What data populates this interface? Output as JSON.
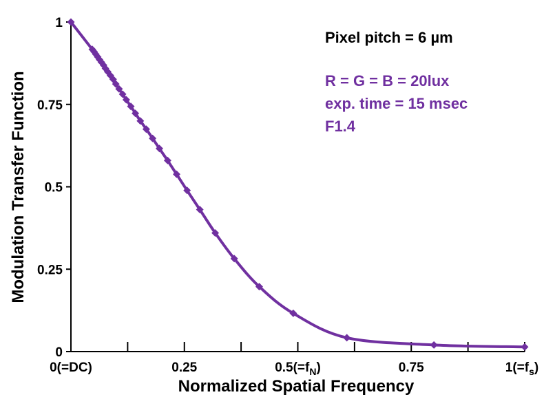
{
  "chart_data": {
    "type": "line",
    "xlabel": "Normalized Spatial Frequency",
    "ylabel": "Modulation Transfer Function",
    "xlim": [
      0,
      1
    ],
    "ylim": [
      0,
      1
    ],
    "x_ticks": [
      {
        "value": 0,
        "label": "0(=DC)"
      },
      {
        "value": 0.25,
        "label": "0.25"
      },
      {
        "value": 0.5,
        "label": "0.5(=f",
        "sub": "N",
        "suffix": ")"
      },
      {
        "value": 0.75,
        "label": "0.75"
      },
      {
        "value": 1,
        "label": "1(=f",
        "sub": "s",
        "suffix": ")"
      }
    ],
    "x_minor_ticks": [
      0.125,
      0.375,
      0.625,
      0.875
    ],
    "y_ticks": [
      {
        "value": 0,
        "label": "0"
      },
      {
        "value": 0.25,
        "label": "0.25"
      },
      {
        "value": 0.5,
        "label": "0.5"
      },
      {
        "value": 0.75,
        "label": "0.75"
      },
      {
        "value": 1,
        "label": "1"
      }
    ],
    "grid": false,
    "legend": "none",
    "series_color": "#7030a0",
    "annotations": {
      "pixel_pitch": "Pixel pitch = 6 µm",
      "line1": "R = G = B = 20lux",
      "line2": "exp. time = 15 msec",
      "line3": "F1.4"
    },
    "series": [
      {
        "points": [
          [
            0.0,
            1.0
          ],
          [
            0.047,
            0.917
          ],
          [
            0.051,
            0.91
          ],
          [
            0.055,
            0.902
          ],
          [
            0.059,
            0.894
          ],
          [
            0.063,
            0.886
          ],
          [
            0.067,
            0.878
          ],
          [
            0.072,
            0.869
          ],
          [
            0.076,
            0.859
          ],
          [
            0.081,
            0.849
          ],
          [
            0.087,
            0.838
          ],
          [
            0.093,
            0.826
          ],
          [
            0.099,
            0.812
          ],
          [
            0.106,
            0.797
          ],
          [
            0.114,
            0.781
          ],
          [
            0.122,
            0.764
          ],
          [
            0.132,
            0.744
          ],
          [
            0.142,
            0.723
          ],
          [
            0.153,
            0.7
          ],
          [
            0.166,
            0.675
          ],
          [
            0.18,
            0.647
          ],
          [
            0.195,
            0.616
          ],
          [
            0.213,
            0.58
          ],
          [
            0.233,
            0.538
          ],
          [
            0.256,
            0.489
          ],
          [
            0.284,
            0.431
          ],
          [
            0.318,
            0.36
          ],
          [
            0.36,
            0.282
          ],
          [
            0.415,
            0.197
          ],
          [
            0.49,
            0.116
          ],
          [
            0.608,
            0.042
          ],
          [
            0.8,
            0.02
          ],
          [
            1.0,
            0.014
          ]
        ]
      }
    ]
  }
}
